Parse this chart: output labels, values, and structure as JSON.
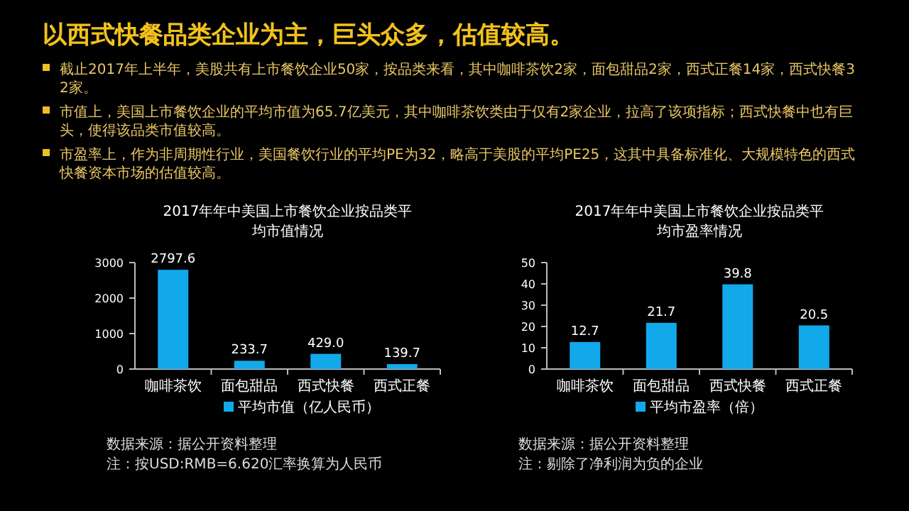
{
  "chart_data": [
    {
      "type": "other",
      "title": "以西式快餐品类企业为主，巨头众多，估值较高。",
      "annotations": [
        "截止2017年上半年，美股共有上市餐饮企业50家，按品类来看，其中咖啡茶饮2家，面包甜品2家，西式正餐14家，西式快餐32家。",
        "市值上，美国上市餐饮企业的平均市值为65.7亿美元，其中咖啡茶饮类由于仅有2家企业，拉高了该项指标；西式快餐中也有巨头，使得该品类市值较高。",
        "市盈率上，作为非周期性行业，美国餐饮行业的平均PE为32，略高于美股的平均PE25，这其中具备标准化、大规模特色的西式快餐资本市场的估值较高。"
      ]
    },
    {
      "type": "bar",
      "title": "2017年年中美国上市餐饮企业按品类平均市值情况",
      "categories": [
        "咖啡茶饮",
        "面包甜品",
        "西式快餐",
        "西式正餐"
      ],
      "series": [
        {
          "name": "平均市值（亿人民币）",
          "color": "#12a9ea",
          "values": [
            2797.6,
            233.7,
            429.0,
            139.7
          ]
        }
      ],
      "value_labels": [
        "2797.6",
        "233.7",
        "429.0",
        "139.7"
      ],
      "ylim": [
        0,
        3000
      ],
      "yticks": [
        0,
        1000,
        2000,
        3000
      ],
      "legend": "bottom",
      "annotations": [
        "数据来源：据公开资料整理",
        "注：按USD:RMB=6.620汇率换算为人民币"
      ]
    },
    {
      "type": "bar",
      "title": "2017年年中美国上市餐饮企业按品类平均市盈率情况",
      "categories": [
        "咖啡茶饮",
        "面包甜品",
        "西式快餐",
        "西式正餐"
      ],
      "series": [
        {
          "name": "平均市盈率（倍）",
          "color": "#12a9ea",
          "values": [
            12.7,
            21.7,
            39.8,
            20.5
          ]
        }
      ],
      "data_labels": true,
      "ylim": [
        0,
        50
      ],
      "yticks": [
        0,
        10,
        20,
        30,
        40,
        50
      ],
      "legend": "bottom",
      "annotations": [
        "数据来源：据公开资料整理",
        "注：剔除了净利润为负的企业"
      ]
    }
  ]
}
